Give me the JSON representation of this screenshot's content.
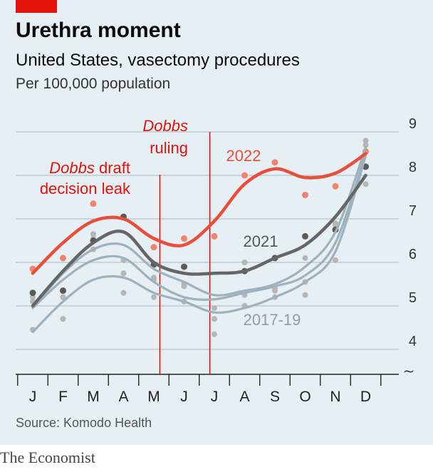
{
  "header": {
    "title": "Urethra moment",
    "subtitle": "United States, vasectomy procedures",
    "units": "Per 100,000 population"
  },
  "footer": {
    "source": "Source: Komodo Health",
    "brand": "The Economist"
  },
  "colors": {
    "accent": "#e3120b",
    "line_2022": "#e94e3a",
    "line_2021": "#666666",
    "line_2017_19": "#9fb1bd",
    "dots_2017_19": "#b6b6b6",
    "background": "#e5eff4",
    "gridline": "#b8c4cc"
  },
  "chart_data": {
    "type": "line",
    "categories": [
      "J",
      "F",
      "M",
      "A",
      "M",
      "J",
      "J",
      "A",
      "S",
      "O",
      "N",
      "D"
    ],
    "ylim": [
      3.5,
      9.3
    ],
    "yticks": [
      4,
      5,
      6,
      7,
      8,
      9
    ],
    "axis_break": "~",
    "grid": true,
    "series": [
      {
        "name": "2022",
        "smoothed": [
          5.75,
          6.45,
          6.95,
          7.0,
          6.55,
          6.4,
          6.95,
          7.8,
          8.15,
          7.95,
          8.05,
          8.5
        ],
        "points": [
          5.85,
          6.1,
          7.35,
          null,
          6.35,
          6.55,
          6.6,
          8.0,
          8.3,
          7.55,
          7.75,
          8.55
        ]
      },
      {
        "name": "2021",
        "smoothed": [
          5.0,
          5.8,
          6.45,
          6.7,
          6.0,
          5.75,
          5.75,
          5.8,
          6.1,
          6.4,
          7.05,
          8.0
        ],
        "points": [
          5.3,
          5.35,
          6.5,
          7.05,
          5.95,
          5.9,
          null,
          5.8,
          6.1,
          6.6,
          6.75,
          8.2
        ]
      },
      {
        "name": "2017-19",
        "smoothed": [
          [
            4.95,
            5.75,
            6.3,
            6.4,
            5.85,
            5.55,
            5.25,
            5.35,
            5.5,
            5.9,
            6.7,
            8.65
          ],
          [
            4.95,
            5.6,
            6.05,
            6.1,
            5.55,
            5.2,
            5.15,
            5.3,
            5.45,
            5.7,
            6.45,
            8.5
          ],
          [
            4.4,
            5.1,
            5.6,
            5.65,
            5.3,
            5.1,
            4.85,
            4.95,
            5.2,
            5.55,
            6.25,
            8.45
          ]
        ],
        "points": [
          [
            5.1,
            5.2,
            6.65,
            5.75,
            5.65,
            5.45,
            4.95,
            6.0,
            5.4,
            5.55,
            6.85,
            8.8
          ],
          [
            5.2,
            4.7,
            6.3,
            5.3,
            5.2,
            5.5,
            4.7,
            5.25,
            5.35,
            5.25,
            6.05,
            8.7
          ],
          [
            4.45,
            5.2,
            6.55,
            6.05,
            5.6,
            5.1,
            4.35,
            5.0,
            5.2,
            6.1,
            6.9,
            7.8
          ]
        ]
      }
    ],
    "annotations": [
      {
        "text_italic": "Dobbs",
        "text": " draft",
        "line2": "decision leak",
        "month_position": 4.2
      },
      {
        "text_italic": "Dobbs",
        "line2": "ruling",
        "month_position": 5.85
      }
    ]
  }
}
